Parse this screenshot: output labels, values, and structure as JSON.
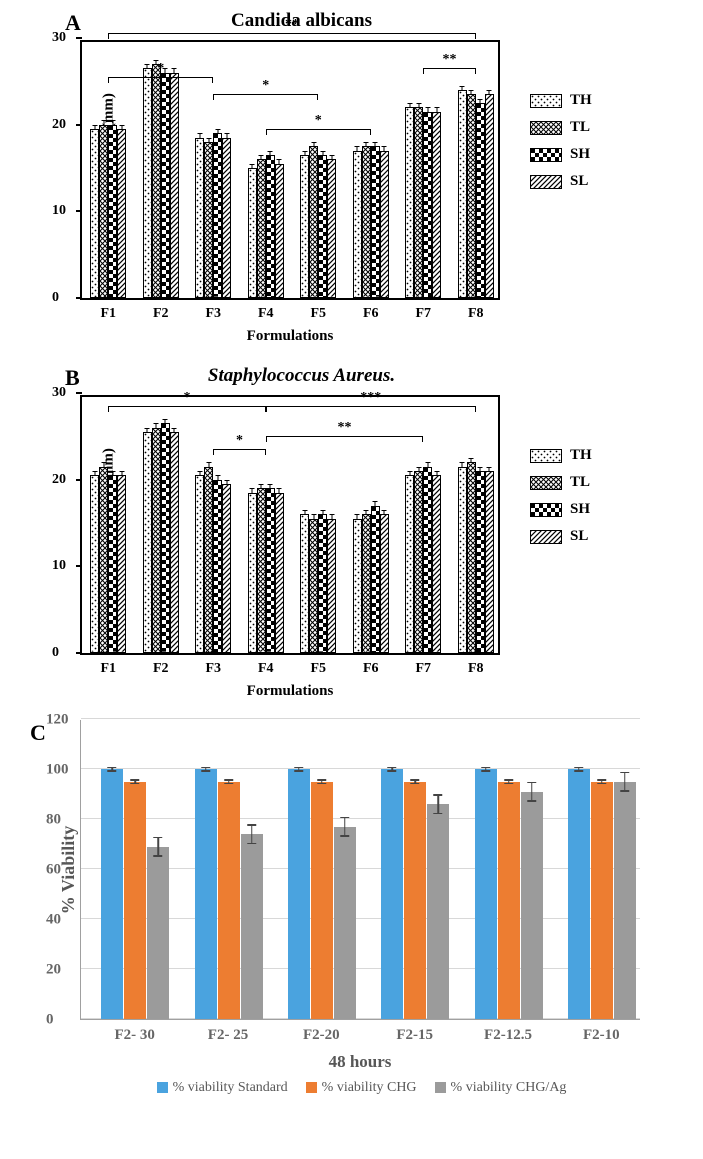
{
  "panelA": {
    "label": "A",
    "title": "Candida albicans",
    "ylabel": "Zone of inhibition (mm)",
    "xlabel": "Formulations",
    "ylim": [
      0,
      30
    ],
    "ytick_step": 10,
    "categories": [
      "F1",
      "F2",
      "F3",
      "F4",
      "F5",
      "F6",
      "F7",
      "F8"
    ],
    "series": [
      "TH",
      "TL",
      "SH",
      "SL"
    ],
    "patterns": {
      "TH": "pTH",
      "TL": "pTL",
      "SH": "pSH",
      "SL": "pSL"
    },
    "values": {
      "F1": [
        19.5,
        20.0,
        20.0,
        19.5
      ],
      "F2": [
        26.5,
        27.0,
        26.0,
        26.0
      ],
      "F3": [
        18.5,
        18.0,
        19.0,
        18.5
      ],
      "F4": [
        15.0,
        16.0,
        16.5,
        15.5
      ],
      "F5": [
        16.5,
        17.5,
        16.5,
        16.0
      ],
      "F6": [
        17.0,
        17.5,
        17.5,
        17.0
      ],
      "F7": [
        22.0,
        22.0,
        21.5,
        21.5
      ],
      "F8": [
        24.0,
        23.5,
        22.5,
        23.5
      ]
    },
    "err": 0.6,
    "sig": [
      {
        "from": "F1",
        "to": "F3",
        "text": "*",
        "y": 26
      },
      {
        "from": "F1",
        "to": "F8",
        "text": "**",
        "y": 31
      },
      {
        "from": "F3",
        "to": "F5",
        "text": "*",
        "y": 24
      },
      {
        "from": "F4",
        "to": "F6",
        "text": "*",
        "y": 20
      },
      {
        "from": "F7",
        "to": "F8",
        "text": "**",
        "y": 27
      }
    ]
  },
  "panelB": {
    "label": "B",
    "title": "Staphylococcus Aureus.",
    "ylabel": "Zone of inhibition (mm)",
    "xlabel": "Formulations",
    "ylim": [
      0,
      30
    ],
    "ytick_step": 10,
    "categories": [
      "F1",
      "F2",
      "F3",
      "F4",
      "F5",
      "F6",
      "F7",
      "F8"
    ],
    "series": [
      "TH",
      "TL",
      "SH",
      "SL"
    ],
    "patterns": {
      "TH": "pTH",
      "TL": "pTL",
      "SH": "pSH",
      "SL": "pSL"
    },
    "values": {
      "F1": [
        20.5,
        21.5,
        20.5,
        20.5
      ],
      "F2": [
        25.5,
        26.0,
        26.5,
        25.5
      ],
      "F3": [
        20.5,
        21.5,
        20.0,
        19.5
      ],
      "F4": [
        18.5,
        19.0,
        19.0,
        18.5
      ],
      "F5": [
        16.0,
        15.5,
        16.0,
        15.5
      ],
      "F6": [
        15.5,
        16.0,
        17.0,
        16.0
      ],
      "F7": [
        20.5,
        21.0,
        21.5,
        20.5
      ],
      "F8": [
        21.5,
        22.0,
        21.0,
        21.0
      ]
    },
    "err": 0.6,
    "sig": [
      {
        "from": "F1",
        "to": "F4",
        "text": "*",
        "y": 29
      },
      {
        "from": "F3",
        "to": "F4",
        "text": "*",
        "y": 24
      },
      {
        "from": "F4",
        "to": "F7",
        "text": "**",
        "y": 25.5
      },
      {
        "from": "F4",
        "to": "F8",
        "text": "***",
        "y": 29
      }
    ]
  },
  "panelC": {
    "label": "C",
    "ylabel": "% Viability",
    "xlabel": "48 hours",
    "ylim": [
      0,
      120
    ],
    "ytick_step": 20,
    "categories": [
      "F2- 30",
      "F2- 25",
      "F2-20",
      "F2-15",
      "F2-12.5",
      "F2-10"
    ],
    "series": [
      {
        "name": "% viability Standard",
        "color": "#4aa3df"
      },
      {
        "name": "% viability CHG",
        "color": "#ed7d31"
      },
      {
        "name": "% viability CHG/Ag",
        "color": "#9b9b9b"
      }
    ],
    "values": {
      "F2- 30": [
        100,
        95,
        69
      ],
      "F2- 25": [
        100,
        95,
        74
      ],
      "F2-20": [
        100,
        95,
        77
      ],
      "F2-15": [
        100,
        95,
        86
      ],
      "F2-12.5": [
        100,
        95,
        91
      ],
      "F2-10": [
        100,
        95,
        95
      ]
    },
    "err": {
      "F2- 30": [
        1,
        1,
        4
      ],
      "F2- 25": [
        1,
        1,
        4
      ],
      "F2-20": [
        1,
        1,
        4
      ],
      "F2-15": [
        1,
        1,
        4
      ],
      "F2-12.5": [
        1,
        1,
        4
      ],
      "F2-10": [
        1,
        1,
        4
      ]
    },
    "grid_color": "#d8d8d8",
    "text_color": "#666666"
  }
}
